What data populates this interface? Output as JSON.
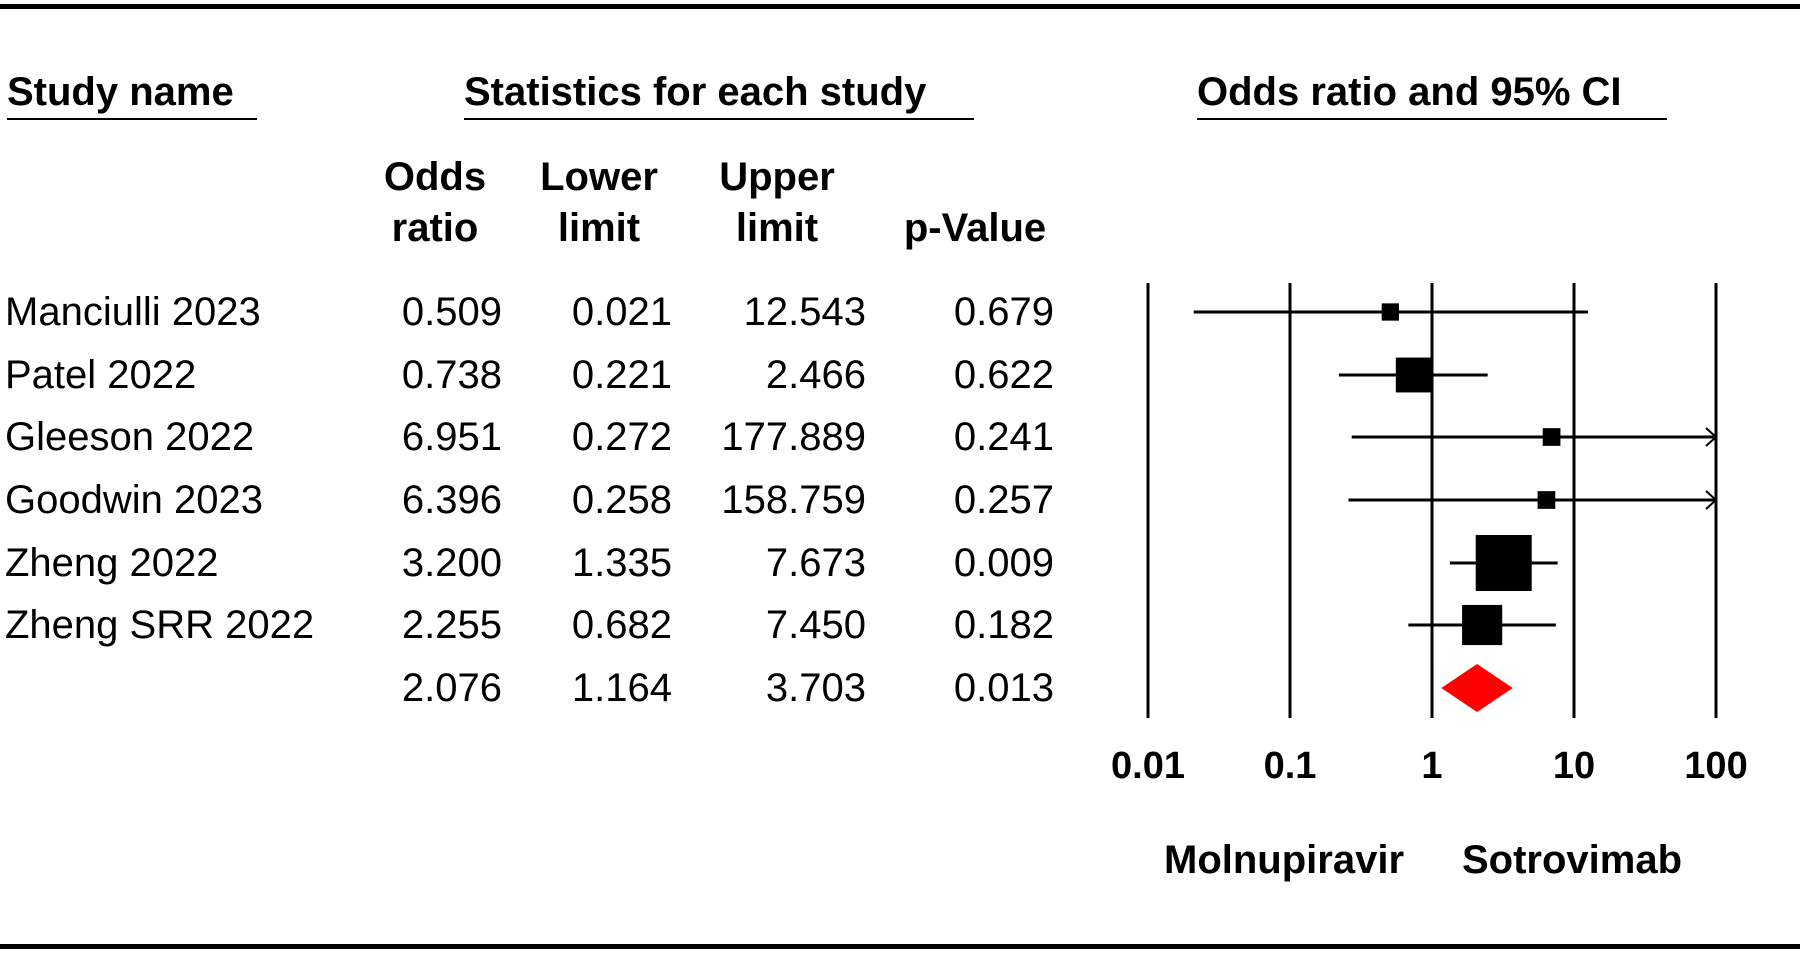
{
  "headers": {
    "study_name": "Study name",
    "statistics": "Statistics for each study",
    "plot": "Odds ratio and 95% CI"
  },
  "columns": {
    "odds_ratio": [
      "Odds",
      "ratio"
    ],
    "lower_limit": [
      "Lower",
      "limit"
    ],
    "upper_limit": [
      "Upper",
      "limit"
    ],
    "p_value": [
      "p-Value"
    ]
  },
  "favours": {
    "left": "Molnupiravir",
    "right": "Sotrovimab"
  },
  "colors": {
    "study_marker": "#000000",
    "summary_marker": "#ff0000",
    "lines": "#000000"
  },
  "chart_data": {
    "type": "forest",
    "x_scale": "log",
    "x_ticks": [
      "0.01",
      "0.1",
      "1",
      "10",
      "100"
    ],
    "xlim": [
      0.01,
      100
    ],
    "grid": "vertical lines at each tick",
    "studies": [
      {
        "name": "Manciulli 2023",
        "odds_ratio": "0.509",
        "lower": "0.021",
        "upper": "12.543",
        "p": "0.679",
        "or": 0.509,
        "lo": 0.021,
        "hi": 12.543,
        "weight": 0.6
      },
      {
        "name": "Patel 2022",
        "odds_ratio": "0.738",
        "lower": "0.221",
        "upper": "2.466",
        "p": "0.622",
        "or": 0.738,
        "lo": 0.221,
        "hi": 2.466,
        "weight": 2.6
      },
      {
        "name": "Gleeson 2022",
        "odds_ratio": "6.951",
        "lower": "0.272",
        "upper": "177.889",
        "p": "0.241",
        "or": 6.951,
        "lo": 0.272,
        "hi": 177.889,
        "weight": 0.65
      },
      {
        "name": "Goodwin 2023",
        "odds_ratio": "6.396",
        "lower": "0.258",
        "upper": "158.759",
        "p": "0.257",
        "or": 6.396,
        "lo": 0.258,
        "hi": 158.759,
        "weight": 0.65
      },
      {
        "name": "Zheng 2022",
        "odds_ratio": "3.200",
        "lower": "1.335",
        "upper": "7.673",
        "p": "0.009",
        "or": 3.2,
        "lo": 1.335,
        "hi": 7.673,
        "weight": 5.0
      },
      {
        "name": "Zheng SRR 2022",
        "odds_ratio": "2.255",
        "lower": "0.682",
        "upper": "7.450",
        "p": "0.182",
        "or": 2.255,
        "lo": 0.682,
        "hi": 7.45,
        "weight": 3.2
      }
    ],
    "summary": {
      "odds_ratio": "2.076",
      "lower": "1.164",
      "upper": "3.703",
      "p": "0.013",
      "or": 2.076,
      "lo": 1.164,
      "hi": 3.703
    }
  }
}
